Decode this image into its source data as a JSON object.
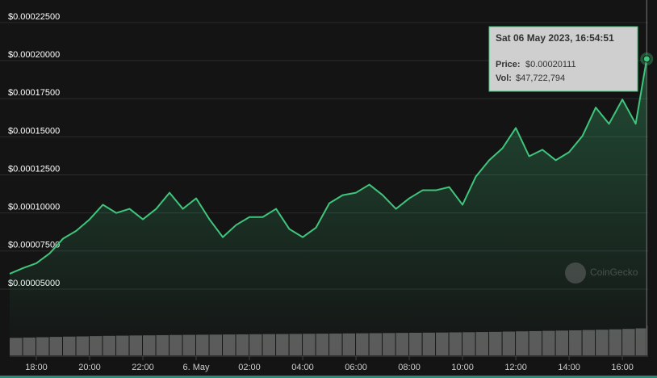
{
  "chart_data": {
    "type": "area",
    "color": "#3fc57c",
    "volume_color": "#5a5a5a",
    "x": [
      "17:00",
      "17:30",
      "18:00",
      "18:30",
      "19:00",
      "19:30",
      "20:00",
      "20:30",
      "21:00",
      "21:30",
      "22:00",
      "22:30",
      "23:00",
      "23:30",
      "00:00",
      "00:30",
      "01:00",
      "01:30",
      "02:00",
      "02:30",
      "03:00",
      "03:30",
      "04:00",
      "04:30",
      "05:00",
      "05:30",
      "06:00",
      "06:30",
      "07:00",
      "07:30",
      "08:00",
      "08:30",
      "09:00",
      "09:30",
      "10:00",
      "10:30",
      "11:00",
      "11:30",
      "12:00",
      "12:30",
      "13:00",
      "13:30",
      "14:00",
      "14:30",
      "15:00",
      "15:30",
      "16:00",
      "16:30",
      "16:54:51"
    ],
    "values": [
      6.01e-05,
      6.38e-05,
      6.7e-05,
      7.35e-05,
      8.31e-05,
      8.83e-05,
      9.58e-05,
      0.0001054,
      0.0001,
      0.0001027,
      9.58e-05,
      0.0001027,
      0.0001133,
      0.0001027,
      0.0001096,
      9.58e-05,
      8.41e-05,
      9.21e-05,
      9.73e-05,
      9.73e-05,
      0.0001027,
      8.94e-05,
      8.41e-05,
      9.04e-05,
      0.0001064,
      0.0001117,
      0.0001133,
      0.0001186,
      0.0001117,
      0.0001027,
      0.0001096,
      0.0001149,
      0.0001149,
      0.000117,
      0.0001054,
      0.0001239,
      0.0001346,
      0.0001425,
      0.0001558,
      0.0001372,
      0.0001415,
      0.0001346,
      0.0001399,
      0.0001505,
      0.0001692,
      0.0001585,
      0.0001745,
      0.0001585,
      0.00020111
    ],
    "volume": [
      28000000,
      28500000,
      29000000,
      29500000,
      30000000,
      30300000,
      30800000,
      31200000,
      31500000,
      31800000,
      32000000,
      32300000,
      32600000,
      32800000,
      33000000,
      33200000,
      33400000,
      33600000,
      33800000,
      34000000,
      34100000,
      34300000,
      34500000,
      34700000,
      34900000,
      35100000,
      35300000,
      35500000,
      35700000,
      35900000,
      36100000,
      36300000,
      36500000,
      36800000,
      37000000,
      37300000,
      37600000,
      38000000,
      38400000,
      38800000,
      39200000,
      39600000,
      40000000,
      40500000,
      41000000,
      41600000,
      42300000,
      43200000,
      47722794
    ],
    "xlim": [
      "17:00",
      "16:58"
    ],
    "xticks": [
      "18:00",
      "20:00",
      "22:00",
      {
        "value": "00:00",
        "label": "6. May"
      },
      "02:00",
      "04:00",
      "06:00",
      "08:00",
      "10:00",
      "12:00",
      "14:00",
      "16:00"
    ],
    "ylim": [
      6.5e-06,
      0.0002398
    ],
    "yticks": [
      {
        "value": 5e-05,
        "label": "$0.00005000"
      },
      {
        "value": 7.5e-05,
        "label": "$0.00007500"
      },
      {
        "value": 0.0001,
        "label": "$0.00010000"
      },
      {
        "value": 0.000125,
        "label": "$0.00012500"
      },
      {
        "value": 0.00015,
        "label": "$0.00015000"
      },
      {
        "value": 0.000175,
        "label": "$0.00017500"
      },
      {
        "value": 0.0002,
        "label": "$0.00020000"
      },
      {
        "value": 0.000225,
        "label": "$0.00022500"
      }
    ],
    "grid": true,
    "tooltip": {
      "title": "Sat 06 May 2023, 16:54:51",
      "price_label": "Price:",
      "price": "$0.00020111",
      "vol_label": "Vol:",
      "vol": "$47,722,794"
    },
    "watermark": "CoinGecko"
  }
}
